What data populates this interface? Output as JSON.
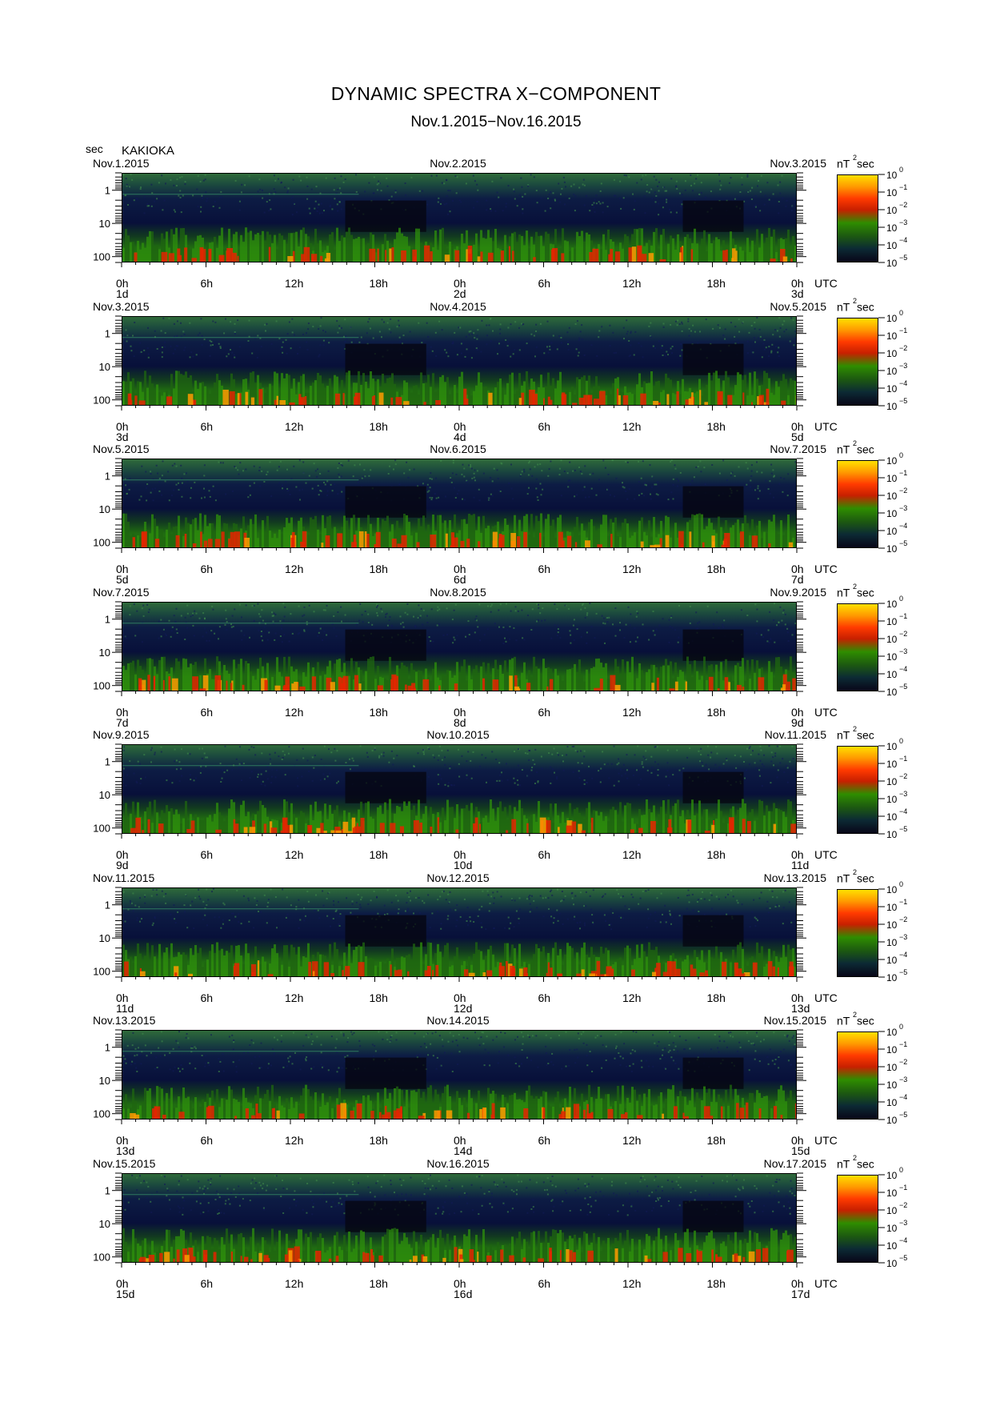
{
  "header": {
    "title": "DYNAMIC SPECTRA X−COMPONENT",
    "subtitle": "Nov.1.2015−Nov.16.2015",
    "y_unit": "sec",
    "station": "KAKIOKA"
  },
  "colorbar": {
    "unit_base": "nT",
    "unit_exp": "2",
    "unit_tail": "sec",
    "base": "10",
    "exponents": [
      "0",
      "−1",
      "−2",
      "−3",
      "−4",
      "−5"
    ],
    "colors": [
      "#ffe000",
      "#ff3a00",
      "#2f8d00",
      "#080618"
    ]
  },
  "chart_data": {
    "type": "heatmap",
    "title": "DYNAMIC SPECTRA X−COMPONENT",
    "y_axis": {
      "label": "sec",
      "scale": "log",
      "ticks": [
        "1",
        "10",
        "100"
      ]
    },
    "x_ticks": [
      "0h",
      "6h",
      "12h",
      "18h",
      "0h",
      "6h",
      "12h",
      "18h",
      "0h"
    ],
    "x_unit_label": "UTC",
    "panels": [
      {
        "date_left": "Nov.1.2015",
        "date_mid": "Nov.2.2015",
        "date_right": "Nov.3.2015",
        "day_labels": [
          "1d",
          "2d",
          "3d"
        ]
      },
      {
        "date_left": "Nov.3.2015",
        "date_mid": "Nov.4.2015",
        "date_right": "Nov.5.2015",
        "day_labels": [
          "3d",
          "4d",
          "5d"
        ]
      },
      {
        "date_left": "Nov.5.2015",
        "date_mid": "Nov.6.2015",
        "date_right": "Nov.7.2015",
        "day_labels": [
          "5d",
          "6d",
          "7d"
        ]
      },
      {
        "date_left": "Nov.7.2015",
        "date_mid": "Nov.8.2015",
        "date_right": "Nov.9.2015",
        "day_labels": [
          "7d",
          "8d",
          "9d"
        ]
      },
      {
        "date_left": "Nov.9.2015",
        "date_mid": "Nov.10.2015",
        "date_right": "Nov.11.2015",
        "day_labels": [
          "9d",
          "10d",
          "11d"
        ]
      },
      {
        "date_left": "Nov.11.2015",
        "date_mid": "Nov.12.2015",
        "date_right": "Nov.13.2015",
        "day_labels": [
          "11d",
          "12d",
          "13d"
        ]
      },
      {
        "date_left": "Nov.13.2015",
        "date_mid": "Nov.14.2015",
        "date_right": "Nov.15.2015",
        "day_labels": [
          "13d",
          "14d",
          "15d"
        ]
      },
      {
        "date_left": "Nov.15.2015",
        "date_mid": "Nov.16.2015",
        "date_right": "Nov.17.2015",
        "day_labels": [
          "15d",
          "16d",
          "17d"
        ]
      }
    ]
  }
}
